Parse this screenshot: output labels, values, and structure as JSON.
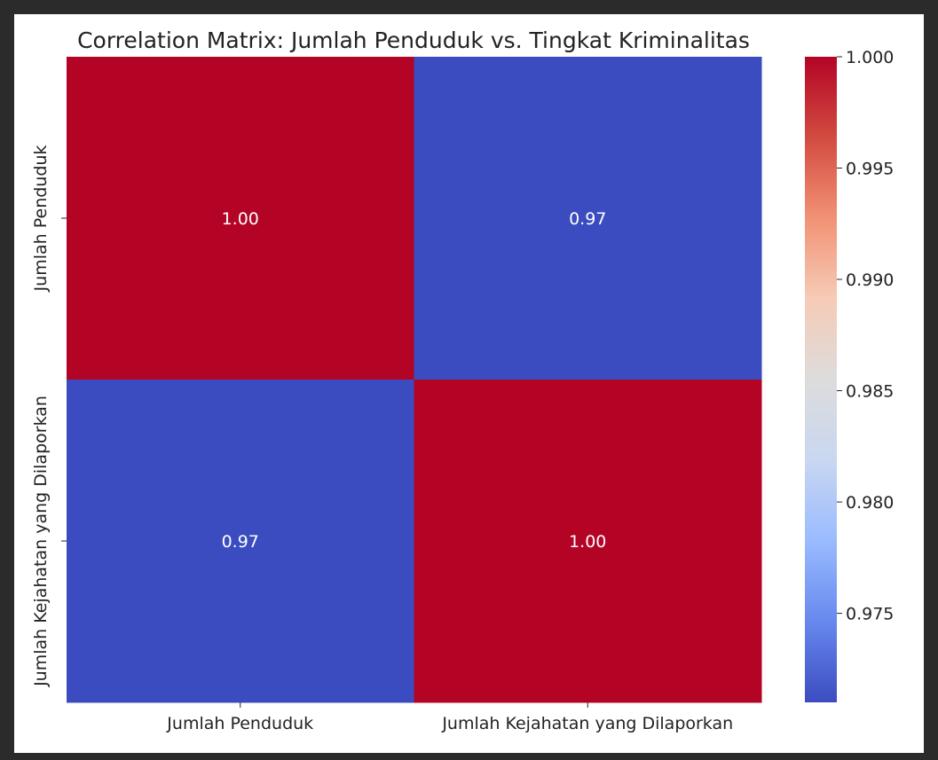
{
  "chart_data": {
    "type": "heatmap",
    "title": "Correlation Matrix: Jumlah Penduduk vs. Tingkat Kriminalitas",
    "row_labels": [
      "Jumlah Penduduk",
      "Jumlah Kejahatan yang Dilaporkan"
    ],
    "column_labels": [
      "Jumlah Penduduk",
      "Jumlah Kejahatan yang Dilaporkan"
    ],
    "values": [
      [
        1.0,
        0.971
      ],
      [
        0.971,
        1.0
      ]
    ],
    "annotations": [
      [
        "1.00",
        "0.97"
      ],
      [
        "0.97",
        "1.00"
      ]
    ],
    "colormap": "coolwarm",
    "colormap_stops": [
      "#3b4cc0",
      "#6788ee",
      "#9abbff",
      "#c9d7f0",
      "#dddcdc",
      "#f6cbb7",
      "#f29274",
      "#d24b40",
      "#b40426"
    ],
    "colorbar": {
      "range": [
        0.971,
        1.0
      ],
      "ticks": [
        0.975,
        0.98,
        0.985,
        0.99,
        0.995,
        1.0
      ],
      "tick_labels": [
        "0.975",
        "0.980",
        "0.985",
        "0.990",
        "0.995",
        "1.000"
      ]
    },
    "annotation_color": "#ffffff",
    "text_color": "#222222",
    "grid": false
  }
}
